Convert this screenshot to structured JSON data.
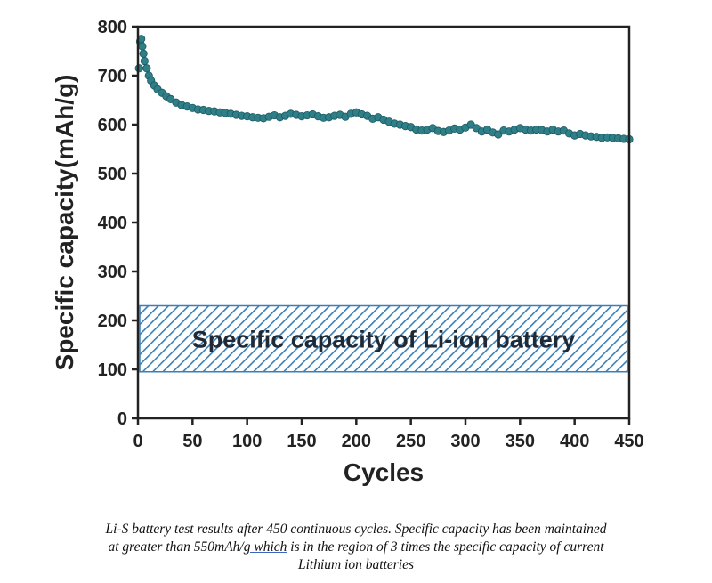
{
  "chart_data": {
    "type": "scatter",
    "xlabel": "Cycles",
    "ylabel": "Specific capacity(mAh/g)",
    "xlim": [
      0,
      450
    ],
    "ylim": [
      0,
      800
    ],
    "xticks": [
      0,
      50,
      100,
      150,
      200,
      250,
      300,
      350,
      400,
      450
    ],
    "yticks": [
      0,
      100,
      200,
      300,
      400,
      500,
      600,
      700,
      800
    ],
    "grid": false,
    "legend": "none",
    "series": [
      {
        "color": "#2e7f88",
        "x": [
          1,
          2,
          3,
          4,
          5,
          6,
          8,
          10,
          12,
          15,
          18,
          22,
          26,
          30,
          35,
          40,
          45,
          50,
          55,
          60,
          65,
          70,
          75,
          80,
          85,
          90,
          95,
          100,
          105,
          110,
          115,
          120,
          125,
          130,
          135,
          140,
          145,
          150,
          155,
          160,
          165,
          170,
          175,
          180,
          185,
          190,
          195,
          200,
          205,
          210,
          215,
          220,
          225,
          230,
          235,
          240,
          245,
          250,
          255,
          260,
          265,
          270,
          275,
          280,
          285,
          290,
          295,
          300,
          305,
          310,
          315,
          320,
          325,
          330,
          335,
          340,
          345,
          350,
          355,
          360,
          365,
          370,
          375,
          380,
          385,
          390,
          395,
          400,
          405,
          410,
          415,
          420,
          425,
          430,
          435,
          440,
          445,
          450
        ],
        "y": [
          715,
          770,
          775,
          760,
          745,
          730,
          715,
          700,
          690,
          680,
          672,
          665,
          658,
          652,
          645,
          640,
          637,
          634,
          631,
          630,
          628,
          627,
          625,
          624,
          622,
          620,
          618,
          617,
          615,
          614,
          613,
          616,
          619,
          615,
          618,
          622,
          620,
          617,
          619,
          621,
          617,
          614,
          615,
          618,
          620,
          616,
          622,
          625,
          621,
          618,
          612,
          615,
          610,
          606,
          602,
          600,
          597,
          595,
          590,
          588,
          590,
          593,
          587,
          585,
          588,
          592,
          590,
          594,
          600,
          593,
          586,
          590,
          584,
          580,
          588,
          586,
          590,
          593,
          590,
          588,
          590,
          589,
          586,
          590,
          586,
          588,
          582,
          578,
          581,
          578,
          576,
          575,
          573,
          574,
          573,
          572,
          571,
          570
        ]
      }
    ],
    "annotations": [
      {
        "text": "Specific capacity of Li-ion battery",
        "y_range": [
          95,
          230
        ]
      }
    ]
  },
  "caption": {
    "line1": "Li-S battery test results after 450 continuous cycles. Specific capacity has been maintained",
    "line2_before": "at greater than 550mAh/",
    "line2_underlined": "g  which",
    "line2_after": " is in the region of 3 times the specific capacity of current",
    "line3": "Lithium ion batteries"
  },
  "colors": {
    "marker": "#2e7f88",
    "marker_edge": "#1e5a61",
    "band_hatch": "#3b7fb5",
    "axis": "#222222"
  }
}
